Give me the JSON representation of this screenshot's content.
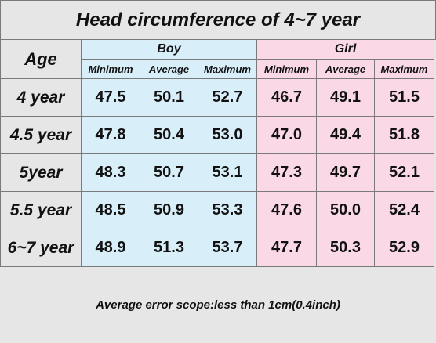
{
  "table": {
    "title": "Head circumference of  4~7 year",
    "age_header": "Age",
    "groups": [
      "Boy",
      "Girl"
    ],
    "subheaders": [
      "Minimum",
      "Average",
      "Maximum",
      "Minimum",
      "Average",
      "Maximum"
    ],
    "rows": [
      {
        "age": "4 year",
        "values": [
          "47.5",
          "50.1",
          "52.7",
          "46.7",
          "49.1",
          "51.5"
        ]
      },
      {
        "age": "4.5 year",
        "values": [
          "47.8",
          "50.4",
          "53.0",
          "47.0",
          "49.4",
          "51.8"
        ]
      },
      {
        "age": "5year",
        "values": [
          "48.3",
          "50.7",
          "53.1",
          "47.3",
          "49.7",
          "52.1"
        ]
      },
      {
        "age": "5.5 year",
        "values": [
          "48.5",
          "50.9",
          "53.3",
          "47.6",
          "50.0",
          "52.4"
        ]
      },
      {
        "age": "6~7 year",
        "values": [
          "48.9",
          "51.3",
          "53.7",
          "47.7",
          "50.3",
          "52.9"
        ]
      }
    ],
    "footer": "Average error scope:less than 1cm(0.4inch)"
  }
}
